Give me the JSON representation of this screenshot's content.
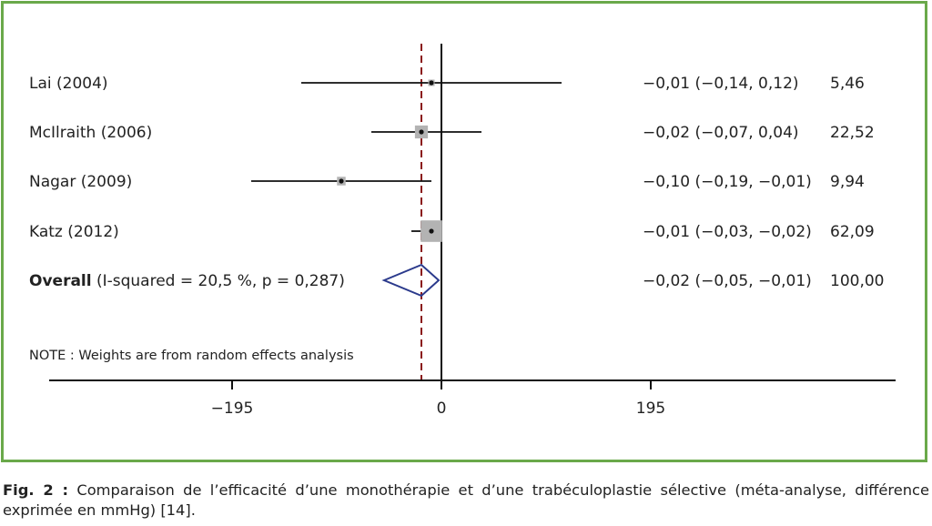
{
  "chart_data": {
    "type": "forest",
    "x_axis": {
      "ticks": [
        -195,
        0,
        195
      ],
      "tick_labels": [
        "−195",
        "0",
        "195"
      ]
    },
    "studies": [
      {
        "label": "Lai (2004)",
        "point": -0.01,
        "ci_low": -0.14,
        "ci_high": 0.12,
        "ci_text": "−0,01 (−0,14, 0,12)",
        "weight": 5.46,
        "weight_text": "5,46"
      },
      {
        "label": "McIlraith (2006)",
        "point": -0.02,
        "ci_low": -0.07,
        "ci_high": 0.04,
        "ci_text": "−0,02 (−0,07, 0,04)",
        "weight": 22.52,
        "weight_text": "22,52"
      },
      {
        "label": "Nagar (2009)",
        "point": -0.1,
        "ci_low": -0.19,
        "ci_high": -0.01,
        "ci_text": "−0,10 (−0,19, −0,01)",
        "weight": 9.94,
        "weight_text": "9,94"
      },
      {
        "label": "Katz (2012)",
        "point": -0.01,
        "ci_low": -0.03,
        "ci_high": -0.02,
        "ci_text": "−0,01 (−0,03, −0,02)",
        "weight": 62.09,
        "weight_text": "62,09"
      }
    ],
    "overall": {
      "label_bold": "Overall",
      "label_rest": " (I-squared = 20,5 %, p = 0,287)",
      "point": -0.02,
      "ci_low": -0.05,
      "ci_high": -0.01,
      "ci_text": "−0,02 (−0,05, −0,01)",
      "weight": 100.0,
      "weight_text": "100,00"
    },
    "note": "NOTE : Weights are from random effects analysis",
    "colors": {
      "frame": "#6aa94a",
      "reference_line": "#8b1a1a",
      "diamond": "#2b3a8c",
      "box": "#b3b3b3"
    }
  },
  "caption": {
    "fig_label": "Fig. 2 :",
    "text": " Comparaison de l’efficacité d’une monothérapie et d’une trabéculoplastie sélective (méta-analyse, différence exprimée en mmHg) [14]."
  }
}
